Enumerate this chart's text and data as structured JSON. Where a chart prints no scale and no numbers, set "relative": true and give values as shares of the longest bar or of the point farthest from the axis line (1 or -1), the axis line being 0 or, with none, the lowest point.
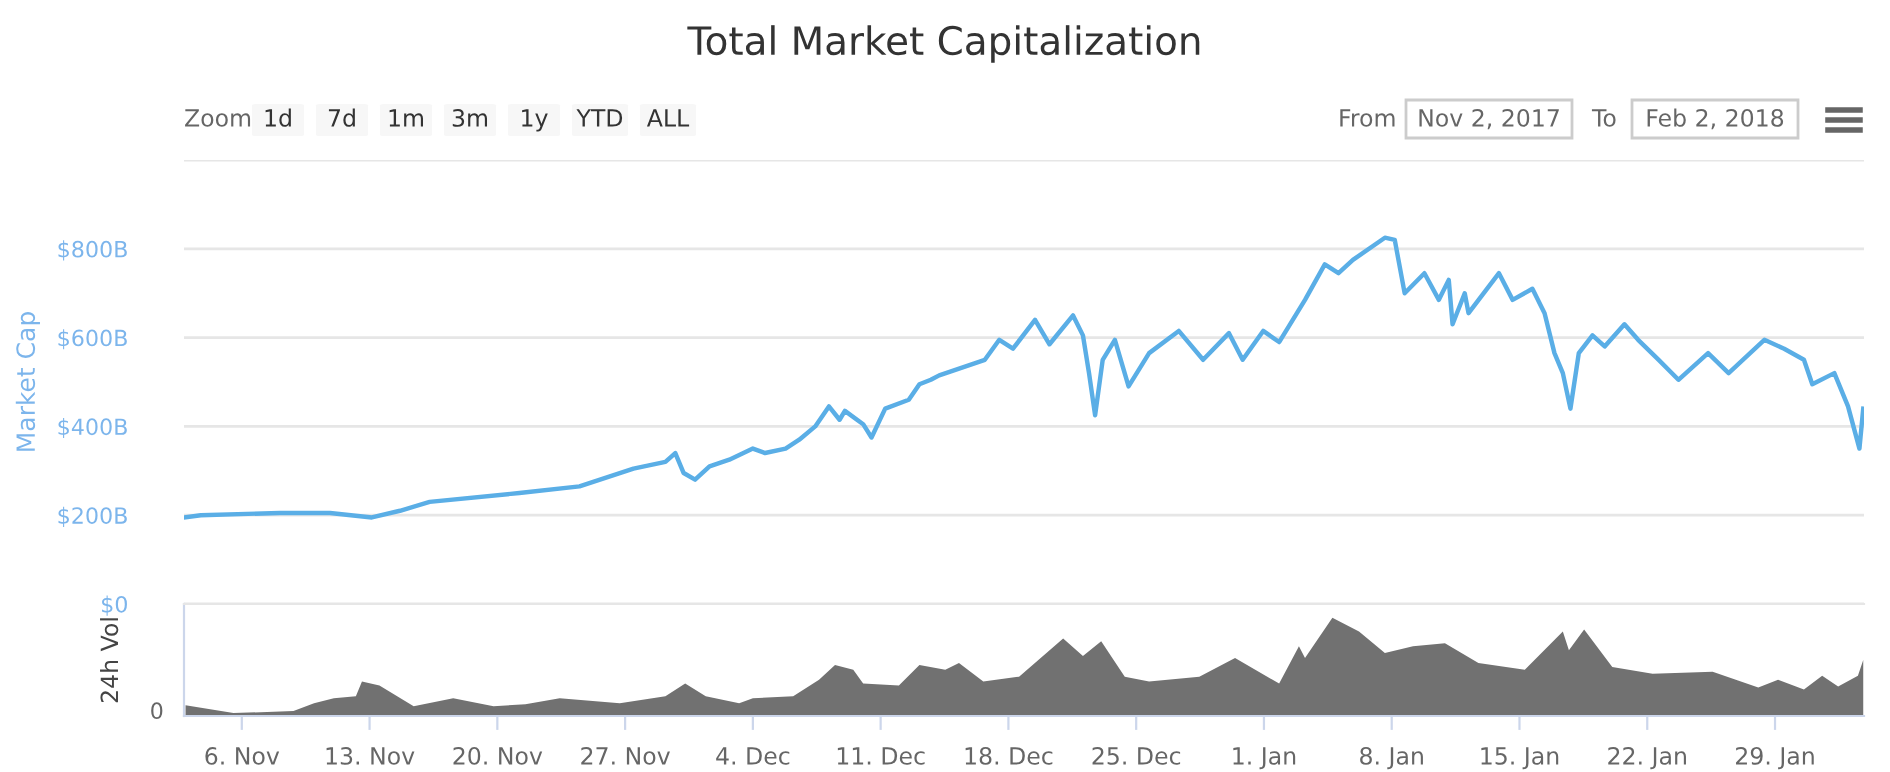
{
  "chart_data": [
    {
      "type": "line",
      "title": "Total Market Capitalization",
      "ylabel": "Market Cap",
      "annotations": [
        "Zoom",
        "1d",
        "7d",
        "1m",
        "3m",
        "1y",
        "YTD",
        "ALL",
        "From",
        "Nov 2, 2017",
        "To",
        "Feb 2, 2018"
      ],
      "xlim": [
        "2017-11-02T20:00",
        "2018-02-02T21:00"
      ],
      "ylim": [
        0,
        1000
      ],
      "yticks": [
        {
          "value": 0,
          "label": "$0"
        },
        {
          "value": 200,
          "label": "$200B"
        },
        {
          "value": 400,
          "label": "$400B"
        },
        {
          "value": 600,
          "label": "$600B"
        },
        {
          "value": 800,
          "label": "$800B"
        },
        {
          "value": 1000,
          "label": null
        }
      ],
      "tick_labels": "y",
      "grid": "y",
      "series": [
        {
          "color": "#5aaee6",
          "x": [
            "2017-11-02T20:00",
            "2017-11-03T18:00",
            "2017-11-08T02:00",
            "2017-11-10T20:00",
            "2017-11-13T03:00",
            "2017-11-14T16:00",
            "2017-11-16T07:00",
            "2017-11-21T05:00",
            "2017-11-24T12:00",
            "2017-11-26T17:00",
            "2017-11-27T11:00",
            "2017-11-29T05:00",
            "2017-11-29T18:00",
            "2017-11-30T05:00",
            "2017-11-30T20:00",
            "2017-12-01T15:00",
            "2017-12-02T17:00",
            "2017-12-04T00:00",
            "2017-12-04T16:00",
            "2017-12-05T19:00",
            "2017-12-06T13:00",
            "2017-12-07T10:00",
            "2017-12-08T04:00",
            "2017-12-08T18:00",
            "2017-12-09T01:00",
            "2017-12-10T01:00",
            "2017-12-10T12:00",
            "2017-12-11T06:00",
            "2017-12-12T13:00",
            "2017-12-13T03:00",
            "2017-12-13T18:00",
            "2017-12-14T05:00",
            "2017-12-16T17:00",
            "2017-12-17T12:00",
            "2017-12-18T06:00",
            "2017-12-19T11:00",
            "2017-12-20T06:00",
            "2017-12-21T13:00",
            "2017-12-22T02:00",
            "2017-12-22T10:00",
            "2017-12-22T18:00",
            "2017-12-23T04:00",
            "2017-12-23T20:00",
            "2017-12-24T14:00",
            "2017-12-25T17:00",
            "2017-12-27T08:00",
            "2017-12-28T16:00",
            "2017-12-30T02:00",
            "2017-12-30T20:00",
            "2017-12-31T23:00",
            "2018-01-01T20:00",
            "2018-01-03T06:00",
            "2018-01-04T08:00",
            "2018-01-05T02:00",
            "2018-01-05T21:00",
            "2018-01-07T15:00",
            "2018-01-08T04:00",
            "2018-01-08T17:00",
            "2018-01-09T19:00",
            "2018-01-10T14:00",
            "2018-01-11T03:00",
            "2018-01-11T08:00",
            "2018-01-12T00:00",
            "2018-01-12T05:00",
            "2018-01-13T21:00",
            "2018-01-14T15:00",
            "2018-01-15T17:00",
            "2018-01-16T09:00",
            "2018-01-16T22:00",
            "2018-01-17T09:00",
            "2018-01-17T19:00",
            "2018-01-18T06:00",
            "2018-01-19T00:00",
            "2018-01-19T16:00",
            "2018-01-20T18:00",
            "2018-01-21T12:00",
            "2018-01-22T15:00",
            "2018-01-23T17:00",
            "2018-01-25T08:00",
            "2018-01-26T11:00",
            "2018-01-28T10:00",
            "2018-01-29T12:00",
            "2018-01-30T14:00",
            "2018-01-31T01:00",
            "2018-02-01T06:00",
            "2018-02-02T00:00",
            "2018-02-02T15:00",
            "2018-02-02T20:00"
          ],
          "values": [
            195,
            200,
            205,
            205,
            195,
            210,
            230,
            250,
            265,
            295,
            305,
            320,
            340,
            295,
            280,
            310,
            325,
            350,
            340,
            350,
            370,
            400,
            445,
            415,
            435,
            405,
            375,
            440,
            460,
            495,
            505,
            515,
            550,
            595,
            575,
            640,
            585,
            650,
            605,
            520,
            425,
            550,
            595,
            490,
            565,
            615,
            550,
            610,
            550,
            615,
            590,
            685,
            765,
            745,
            775,
            825,
            820,
            700,
            745,
            685,
            730,
            630,
            700,
            655,
            745,
            685,
            710,
            655,
            565,
            520,
            440,
            565,
            605,
            580,
            630,
            595,
            550,
            505,
            565,
            520,
            595,
            575,
            550,
            495,
            520,
            445,
            350,
            440
          ]
        }
      ]
    },
    {
      "type": "area",
      "relative": true,
      "ylabel": "24h Vol",
      "annotations": [
        "0"
      ],
      "xlim": [
        "2017-11-02T20:00",
        "2018-02-02T21:00"
      ],
      "xticks": [
        {
          "value": "2017-11-06",
          "label": "6. Nov"
        },
        {
          "value": "2017-11-13",
          "label": "13. Nov"
        },
        {
          "value": "2017-11-20",
          "label": "20. Nov"
        },
        {
          "value": "2017-11-27",
          "label": "27. Nov"
        },
        {
          "value": "2017-12-04",
          "label": "4. Dec"
        },
        {
          "value": "2017-12-11",
          "label": "11. Dec"
        },
        {
          "value": "2017-12-18",
          "label": "18. Dec"
        },
        {
          "value": "2017-12-25",
          "label": "25. Dec"
        },
        {
          "value": "2018-01-01",
          "label": "1. Jan"
        },
        {
          "value": "2018-01-08",
          "label": "8. Jan"
        },
        {
          "value": "2018-01-15",
          "label": "15. Jan"
        },
        {
          "value": "2018-01-22",
          "label": "22. Jan"
        },
        {
          "value": "2018-01-29",
          "label": "29. Jan"
        }
      ],
      "tick_labels": "x",
      "series": [
        {
          "color": "#717171",
          "x": [
            "2017-11-02T22:00",
            "2017-11-05T13:00",
            "2017-11-08T20:00",
            "2017-11-09T23:00",
            "2017-11-11T01:00",
            "2017-11-12T06:00",
            "2017-11-12T14:00",
            "2017-11-13T13:00",
            "2017-11-15T10:00",
            "2017-11-17T14:00",
            "2017-11-19T19:00",
            "2017-11-21T13:00",
            "2017-11-23T10:00",
            "2017-11-26T17:00",
            "2017-11-29T05:00",
            "2017-11-30T07:00",
            "2017-12-01T10:00",
            "2017-12-03T06:00",
            "2017-12-04T00:00",
            "2017-12-06T05:00",
            "2017-12-07T15:00",
            "2017-12-08T12:00",
            "2017-12-09T12:00",
            "2017-12-10T01:00",
            "2017-12-12T00:00",
            "2017-12-13T03:00",
            "2017-12-14T13:00",
            "2017-12-15T07:00",
            "2017-12-16T15:00",
            "2017-12-18T14:00",
            "2017-12-21T00:00",
            "2017-12-22T02:00",
            "2017-12-23T02:00",
            "2017-12-24T09:00",
            "2017-12-25T17:00",
            "2017-12-28T11:00",
            "2017-12-30T10:00",
            "2018-01-01T20:00",
            "2018-01-02T22:00",
            "2018-01-03T06:00",
            "2018-01-04T18:00",
            "2018-01-06T05:00",
            "2018-01-07T15:00",
            "2018-01-09T04:00",
            "2018-01-10T22:00",
            "2018-01-12T18:00",
            "2018-01-15T07:00",
            "2018-01-17T09:00",
            "2018-01-17T17:00",
            "2018-01-18T13:00",
            "2018-01-20T02:00",
            "2018-01-22T07:00",
            "2018-01-25T14:00",
            "2018-01-28T02:00",
            "2018-01-29T04:00",
            "2018-01-30T14:00",
            "2018-01-31T14:00",
            "2018-02-01T11:00",
            "2018-02-02T13:00",
            "2018-02-02T20:00"
          ],
          "values": [
            0.11,
            0.03,
            0.05,
            0.13,
            0.18,
            0.2,
            0.35,
            0.31,
            0.1,
            0.18,
            0.1,
            0.12,
            0.18,
            0.13,
            0.2,
            0.33,
            0.2,
            0.13,
            0.18,
            0.2,
            0.37,
            0.52,
            0.47,
            0.33,
            0.31,
            0.52,
            0.47,
            0.54,
            0.35,
            0.4,
            0.79,
            0.61,
            0.76,
            0.4,
            0.35,
            0.4,
            0.59,
            0.33,
            0.71,
            0.59,
            1,
            0.86,
            0.64,
            0.71,
            0.74,
            0.54,
            0.47,
            0.86,
            0.67,
            0.88,
            0.5,
            0.43,
            0.45,
            0.29,
            0.37,
            0.27,
            0.41,
            0.3,
            0.41,
            0.57
          ]
        }
      ]
    }
  ]
}
